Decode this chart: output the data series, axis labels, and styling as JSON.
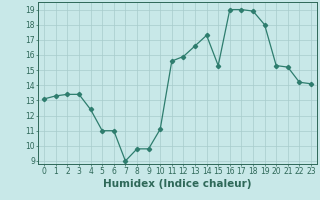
{
  "x": [
    0,
    1,
    2,
    3,
    4,
    5,
    6,
    7,
    8,
    9,
    10,
    11,
    12,
    13,
    14,
    15,
    16,
    17,
    18,
    19,
    20,
    21,
    22,
    23
  ],
  "y": [
    13.1,
    13.3,
    13.4,
    13.4,
    12.4,
    11.0,
    11.0,
    9.0,
    9.8,
    9.8,
    11.1,
    15.6,
    15.9,
    16.6,
    17.3,
    15.3,
    19.0,
    19.0,
    18.9,
    18.0,
    15.3,
    15.2,
    14.2,
    14.1
  ],
  "line_color": "#2e7d6e",
  "marker": "D",
  "marker_size": 2.2,
  "bg_color": "#c8e8e8",
  "grid_color": "#a8cccc",
  "xlabel": "Humidex (Indice chaleur)",
  "ylim": [
    8.8,
    19.5
  ],
  "xlim": [
    -0.5,
    23.5
  ],
  "yticks": [
    9,
    10,
    11,
    12,
    13,
    14,
    15,
    16,
    17,
    18,
    19
  ],
  "xticks": [
    0,
    1,
    2,
    3,
    4,
    5,
    6,
    7,
    8,
    9,
    10,
    11,
    12,
    13,
    14,
    15,
    16,
    17,
    18,
    19,
    20,
    21,
    22,
    23
  ],
  "tick_fontsize": 5.5,
  "xlabel_fontsize": 7.5,
  "tick_color": "#2e6858",
  "spine_color": "#2e6858",
  "line_width": 0.9
}
